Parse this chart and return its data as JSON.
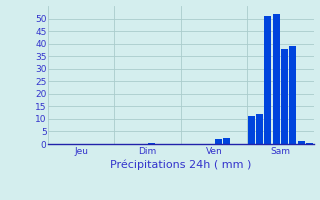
{
  "xlabel": "Précipitations 24h ( mm )",
  "background_color": "#d4eeee",
  "bar_color": "#0044dd",
  "grid_color": "#aacccc",
  "axis_color": "#2222aa",
  "ylim": [
    0,
    55
  ],
  "yticks": [
    0,
    5,
    10,
    15,
    20,
    25,
    30,
    35,
    40,
    45,
    50
  ],
  "day_labels": [
    "Jeu",
    "Dim",
    "Ven",
    "Sam"
  ],
  "n_bars": 32,
  "bar_values": [
    0,
    0,
    0,
    0,
    0,
    0,
    0,
    0,
    0,
    0,
    0,
    0,
    0.5,
    0,
    0,
    0,
    0,
    0,
    0,
    0,
    2,
    2.2,
    0,
    0,
    11,
    12,
    51,
    52,
    38,
    39,
    1,
    0.5
  ],
  "tick_fontsize": 6.5,
  "label_fontsize": 8,
  "label_color": "#3333cc",
  "figsize": [
    3.2,
    2.0
  ],
  "dpi": 100
}
